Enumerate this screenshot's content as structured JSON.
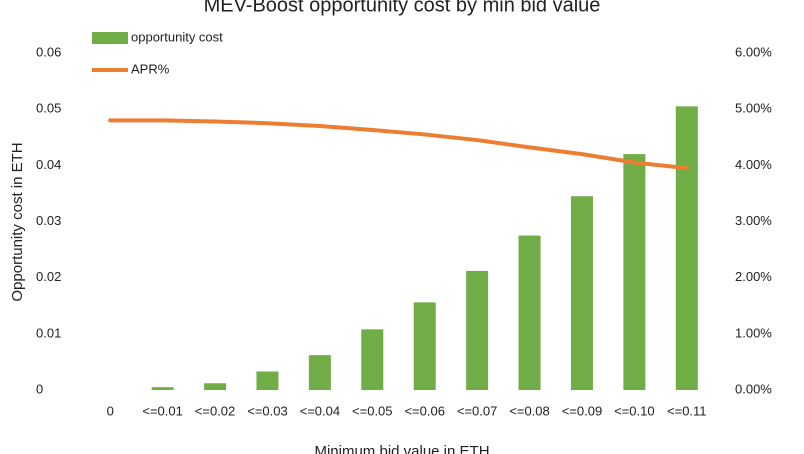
{
  "chart_data": {
    "type": "bar",
    "title": "MEV-Boost opportunity cost by min bid value",
    "x_label": "Minimum bid value in ETH",
    "y_label": "Opportunity cost in ETH",
    "categories": [
      "0",
      "<=0.01",
      "<=0.02",
      "<=0.03",
      "<=0.04",
      "<=0.05",
      "<=0.06",
      "<=0.07",
      "<=0.08",
      "<=0.09",
      "<=0.10",
      "<=0.11"
    ],
    "series": [
      {
        "name": "opportunity cost",
        "type": "bar",
        "color": "#70ad47",
        "values": [
          0,
          0.0005,
          0.0012,
          0.0033,
          0.0062,
          0.0108,
          0.0156,
          0.0212,
          0.0275,
          0.0345,
          0.042,
          0.0505
        ]
      },
      {
        "name": "APR%",
        "type": "line",
        "axis": "y2",
        "color": "#ed7d31",
        "values": [
          4.8,
          4.8,
          4.78,
          4.75,
          4.7,
          4.63,
          4.55,
          4.45,
          4.32,
          4.2,
          4.05,
          3.95
        ]
      }
    ],
    "ylim": [
      0,
      0.06
    ],
    "yticks": [
      0,
      0.01,
      0.02,
      0.03,
      0.04,
      0.05,
      0.06
    ],
    "y2lim": [
      0,
      6
    ],
    "y2ticks": [
      {
        "value": 0,
        "label": "0.00%"
      },
      {
        "value": 1,
        "label": "1.00%"
      },
      {
        "value": 2,
        "label": "2.00%"
      },
      {
        "value": 3,
        "label": "3.00%"
      },
      {
        "value": 4,
        "label": "4.00%"
      },
      {
        "value": 5,
        "label": "5.00%"
      },
      {
        "value": 6,
        "label": "6.00%"
      }
    ],
    "grid": false,
    "legend": "top-left"
  }
}
